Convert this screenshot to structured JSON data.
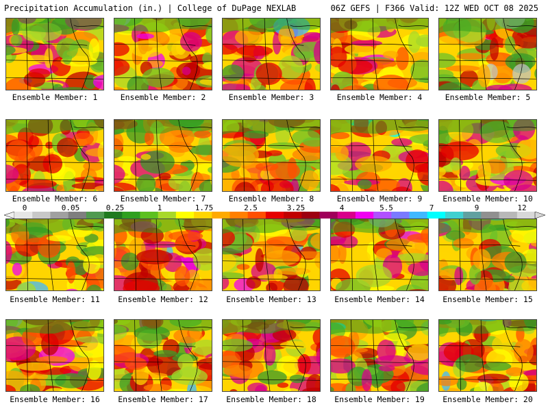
{
  "header": {
    "left_title": "Precipitation Accumulation (in.) | College of DuPage NEXLAB",
    "right_title": "06Z GEFS | F366 Valid: 12Z WED OCT 08 2025"
  },
  "colorbar": {
    "tick_labels": [
      "0",
      "0.05",
      "0.25",
      "1",
      "1.75",
      "2.5",
      "3.25",
      "4",
      "5.5",
      "7",
      "9",
      "12"
    ],
    "colors": [
      "#e6e6e6",
      "#c8c8c8",
      "#a0a0a0",
      "#7f7f7f",
      "#4f9a4f",
      "#1f7a1f",
      "#2f9f1f",
      "#5cc020",
      "#a8d82a",
      "#ffff00",
      "#ffd500",
      "#ffaa00",
      "#ff7f00",
      "#ff4f00",
      "#e60000",
      "#c00000",
      "#9c0010",
      "#a0005a",
      "#d8008a",
      "#f000f0",
      "#b050ff",
      "#7a7aff",
      "#40b8ff",
      "#00ffff",
      "#40d0d0",
      "#60a0a0",
      "#909090",
      "#b8b8b8",
      "#d8d8d8"
    ]
  },
  "panels": [
    {
      "label": "Ensemble Member: 1",
      "intensity": 0.55
    },
    {
      "label": "Ensemble Member: 2",
      "intensity": 0.85
    },
    {
      "label": "Ensemble Member: 3",
      "intensity": 0.6
    },
    {
      "label": "Ensemble Member: 4",
      "intensity": 0.45
    },
    {
      "label": "Ensemble Member: 5",
      "intensity": 0.5
    },
    {
      "label": "Ensemble Member: 6",
      "intensity": 0.55
    },
    {
      "label": "Ensemble Member: 7",
      "intensity": 0.5
    },
    {
      "label": "Ensemble Member: 8",
      "intensity": 0.7
    },
    {
      "label": "Ensemble Member: 9",
      "intensity": 0.55
    },
    {
      "label": "Ensemble Member: 10",
      "intensity": 0.65
    },
    {
      "label": "Ensemble Member: 11",
      "intensity": 0.4
    },
    {
      "label": "Ensemble Member: 12",
      "intensity": 0.85
    },
    {
      "label": "Ensemble Member: 13",
      "intensity": 0.6
    },
    {
      "label": "Ensemble Member: 14",
      "intensity": 0.5
    },
    {
      "label": "Ensemble Member: 15",
      "intensity": 0.7
    },
    {
      "label": "Ensemble Member: 16",
      "intensity": 0.7
    },
    {
      "label": "Ensemble Member: 17",
      "intensity": 0.75
    },
    {
      "label": "Ensemble Member: 18",
      "intensity": 0.6
    },
    {
      "label": "Ensemble Member: 19",
      "intensity": 0.55
    },
    {
      "label": "Ensemble Member: 20",
      "intensity": 0.6
    }
  ]
}
